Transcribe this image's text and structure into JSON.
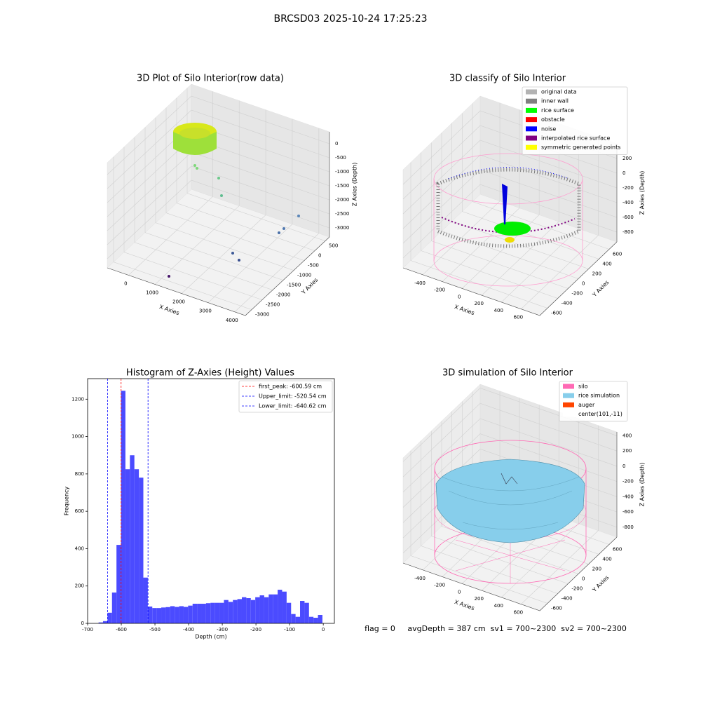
{
  "title": "BRCSD03 2025-10-24 17:25:23",
  "footer": "flag = 0     avgDepth = 387 cm  sv1 = 700~2300  sv2 = 700~2300",
  "chart_data": [
    {
      "type": "scatter3d",
      "title": "3D Plot of Silo Interior(row data)",
      "xlabel": "X Axies",
      "ylabel": "Y Axies",
      "zlabel": "Z Axies (Depth)",
      "xlim": [
        -800,
        4400
      ],
      "xticks": [
        0,
        1000,
        2000,
        3000,
        4000
      ],
      "ylim": [
        -3300,
        700
      ],
      "yticks": [
        -3000,
        -2500,
        -2000,
        -1500,
        -1000,
        -500,
        0,
        500
      ],
      "zlim": [
        -3325,
        425
      ],
      "zticks": [
        -3000,
        -2500,
        -2000,
        -1500,
        -1000,
        -500,
        0
      ]
    },
    {
      "type": "scatter3d",
      "title": "3D classify of Silo Interior",
      "xlabel": "X Axies",
      "ylabel": "Y Axies",
      "zlabel": "Z Axies (Depth)",
      "xlim": [
        -600,
        790
      ],
      "xticks": [
        -400,
        -200,
        0,
        200,
        400,
        600
      ],
      "ylim": [
        -750,
        750
      ],
      "yticks": [
        -600,
        -400,
        -200,
        0,
        200,
        400,
        600
      ],
      "zlim": [
        -933,
        400
      ],
      "zticks": [
        -800,
        -600,
        -400,
        -200,
        0,
        200
      ],
      "legend": [
        {
          "name": "original data",
          "color": "#b3b3b3"
        },
        {
          "name": "inner wall",
          "color": "#808080"
        },
        {
          "name": "rice surface",
          "color": "#00ff00"
        },
        {
          "name": "obstacle",
          "color": "#ff0000"
        },
        {
          "name": "noise",
          "color": "#0000ff"
        },
        {
          "name": "interpolated rice surface",
          "color": "#800080"
        },
        {
          "name": "symmetric generated points",
          "color": "#ffff00"
        }
      ]
    },
    {
      "type": "histogram",
      "title": "Histogram of Z-Axies (Height) Values",
      "xlabel": "Depth (cm)",
      "ylabel": "Frequency",
      "color": "#4b4bff",
      "bins": [
        -667.5,
        -654.2,
        -640.9,
        -627.6,
        -614.3,
        -601.0,
        -587.7,
        -574.4,
        -561.1,
        -547.8,
        -534.5,
        -521.2,
        -507.9,
        -494.6,
        -481.3,
        -468.0,
        -454.7,
        -441.4,
        -428.1,
        -414.8,
        -401.5,
        -388.2,
        -374.9,
        -361.6,
        -348.3,
        -335.0,
        -321.7,
        -308.4,
        -295.1,
        -281.8,
        -268.5,
        -255.2,
        -241.9,
        -228.6,
        -215.3,
        -202.0,
        -188.7,
        -175.4,
        -162.1,
        -148.8,
        -135.5,
        -122.2,
        -108.9,
        -95.6,
        -82.3,
        -69.0,
        -55.7,
        -42.4,
        -29.1,
        -15.8,
        -2.5
      ],
      "values": [
        5,
        12,
        57,
        165,
        420,
        1245,
        825,
        900,
        825,
        780,
        245,
        90,
        82,
        82,
        85,
        87,
        92,
        88,
        92,
        88,
        95,
        105,
        105,
        105,
        108,
        110,
        110,
        110,
        125,
        115,
        125,
        130,
        140,
        135,
        125,
        140,
        150,
        140,
        155,
        155,
        180,
        170,
        110,
        50,
        35,
        120,
        110,
        35,
        30,
        45
      ],
      "xlim": [
        -700,
        33
      ],
      "xticks": [
        -700,
        -600,
        -500,
        -400,
        -300,
        -200,
        -100,
        0
      ],
      "ylim": [
        0,
        1310
      ],
      "yticks": [
        0,
        200,
        400,
        600,
        800,
        1000,
        1200
      ],
      "vlines": [
        {
          "value": -600.59,
          "label": "first_peak: -600.59 cm",
          "color": "#ff0000"
        },
        {
          "value": -520.54,
          "label": "Upper_limit: -520.54 cm",
          "color": "#0000ff"
        },
        {
          "value": -640.62,
          "label": "Lower_limit: -640.62 cm",
          "color": "#0000ff"
        }
      ]
    },
    {
      "type": "surface3d",
      "title": "3D simulation of Silo Interior",
      "xlabel": "X Axies",
      "ylabel": "Y Axies",
      "zlabel": "Z Axies (Depth)",
      "xlim": [
        -600,
        790
      ],
      "xticks": [
        -400,
        -200,
        0,
        200,
        400,
        600
      ],
      "ylim": [
        -750,
        750
      ],
      "yticks": [
        -600,
        -400,
        -200,
        0,
        200,
        400,
        600
      ],
      "zlim": [
        -930,
        450
      ],
      "zticks": [
        -800,
        -600,
        -400,
        -200,
        0,
        200,
        400
      ],
      "legend": [
        {
          "name": "silo",
          "color": "#ff69b4"
        },
        {
          "name": "rice simulation",
          "color": "#87ceeb"
        },
        {
          "name": "auger",
          "color": "#ff4500"
        },
        {
          "name": "center(101,-11)",
          "color": "#ffffff"
        }
      ]
    }
  ]
}
